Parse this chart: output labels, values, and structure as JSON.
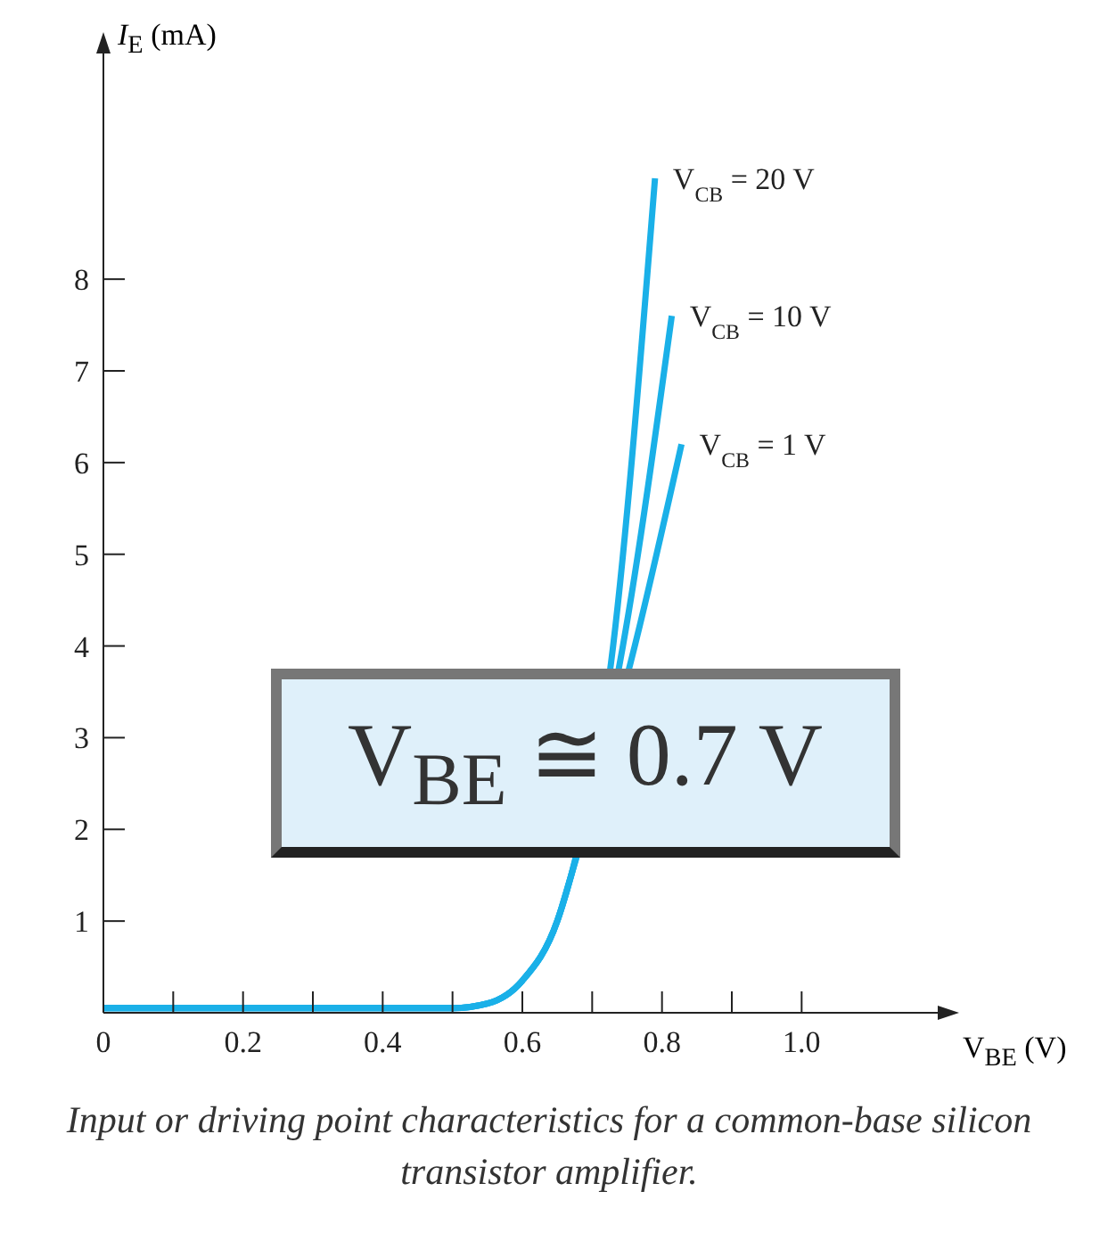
{
  "chart_data": {
    "type": "line",
    "xlabel": "V$_{BE}$ (V)",
    "ylabel": "I$_{E}$ (mA)",
    "xlim": [
      0,
      1.2
    ],
    "ylim": [
      0,
      10.5
    ],
    "xticks": [
      {
        "value": 0,
        "label": "0"
      },
      {
        "value": 0.1,
        "label": null
      },
      0.2,
      {
        "value": 0.3,
        "label": null
      },
      0.4,
      {
        "value": 0.5,
        "label": null
      },
      0.6,
      {
        "value": 0.7,
        "label": null
      },
      0.8,
      {
        "value": 0.9,
        "label": null
      },
      {
        "value": 1.0,
        "label": "1.0"
      }
    ],
    "yticks": [
      1,
      2,
      3,
      4,
      5,
      6,
      7,
      8
    ],
    "marker": "none",
    "line_style": "solid",
    "series": [
      {
        "name": "V$_{CB}$ = 20 V",
        "color": "#1ab0e8",
        "x": [
          0,
          0.1,
          0.2,
          0.3,
          0.4,
          0.5,
          0.55,
          0.6,
          0.65,
          0.67,
          0.73,
          0.79
        ],
        "values": [
          0.05,
          0.05,
          0.05,
          0.05,
          0.05,
          0.05,
          0.1,
          0.35,
          1.0,
          1.5,
          4.0,
          9.1
        ]
      },
      {
        "name": "V$_{CB}$ = 10 V",
        "color": "#1ab0e8",
        "x": [
          0,
          0.1,
          0.2,
          0.3,
          0.4,
          0.5,
          0.55,
          0.6,
          0.65,
          0.67,
          0.744,
          0.814
        ],
        "values": [
          0.05,
          0.05,
          0.05,
          0.05,
          0.05,
          0.05,
          0.1,
          0.35,
          1.0,
          1.5,
          4.0,
          7.6
        ]
      },
      {
        "name": "V$_{CB}$ = 1 V",
        "color": "#1ab0e8",
        "x": [
          0,
          0.1,
          0.2,
          0.3,
          0.4,
          0.5,
          0.55,
          0.6,
          0.65,
          0.67,
          0.761,
          0.828
        ],
        "values": [
          0.05,
          0.05,
          0.05,
          0.05,
          0.05,
          0.05,
          0.1,
          0.35,
          1.0,
          1.5,
          4.0,
          6.2
        ]
      }
    ],
    "annotations": [
      "V$_{BE}$ ≅ 0.7 V",
      "Input or driving point characteristics for a common-base silicon transistor amplifier."
    ]
  }
}
